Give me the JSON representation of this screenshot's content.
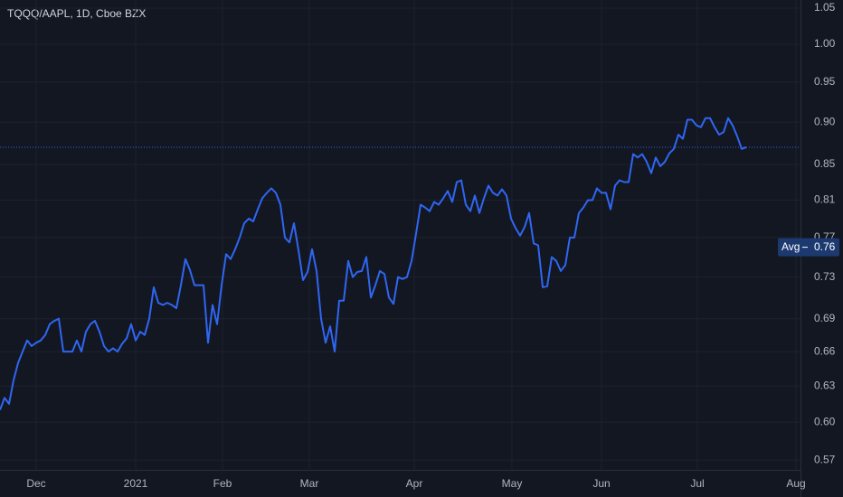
{
  "chart_data": {
    "type": "line",
    "title": "TQQQ/AAPL, 1D, Cboe BZX",
    "log_scale": true,
    "grid": true,
    "color": "#2f66f2",
    "values": [
      0.61,
      0.62,
      0.615,
      0.635,
      0.65,
      0.66,
      0.67,
      0.665,
      0.668,
      0.67,
      0.675,
      0.685,
      0.688,
      0.69,
      0.66,
      0.66,
      0.66,
      0.67,
      0.66,
      0.678,
      0.685,
      0.688,
      0.678,
      0.665,
      0.66,
      0.663,
      0.66,
      0.667,
      0.672,
      0.685,
      0.67,
      0.678,
      0.675,
      0.69,
      0.72,
      0.705,
      0.703,
      0.705,
      0.703,
      0.7,
      0.722,
      0.748,
      0.737,
      0.722,
      0.722,
      0.722,
      0.668,
      0.703,
      0.685,
      0.722,
      0.753,
      0.748,
      0.758,
      0.77,
      0.785,
      0.79,
      0.787,
      0.8,
      0.812,
      0.818,
      0.823,
      0.818,
      0.805,
      0.77,
      0.765,
      0.785,
      0.757,
      0.727,
      0.735,
      0.758,
      0.736,
      0.69,
      0.668,
      0.683,
      0.66,
      0.707,
      0.707,
      0.746,
      0.73,
      0.735,
      0.736,
      0.75,
      0.71,
      0.722,
      0.736,
      0.733,
      0.71,
      0.704,
      0.73,
      0.728,
      0.73,
      0.746,
      0.774,
      0.805,
      0.802,
      0.798,
      0.808,
      0.805,
      0.812,
      0.82,
      0.808,
      0.83,
      0.832,
      0.805,
      0.798,
      0.815,
      0.796,
      0.812,
      0.826,
      0.818,
      0.815,
      0.822,
      0.815,
      0.79,
      0.78,
      0.772,
      0.781,
      0.796,
      0.764,
      0.762,
      0.72,
      0.721,
      0.75,
      0.746,
      0.736,
      0.742,
      0.77,
      0.77,
      0.796,
      0.802,
      0.81,
      0.81,
      0.823,
      0.818,
      0.818,
      0.8,
      0.826,
      0.832,
      0.83,
      0.83,
      0.862,
      0.858,
      0.862,
      0.853,
      0.84,
      0.858,
      0.848,
      0.853,
      0.863,
      0.868,
      0.885,
      0.88,
      0.903,
      0.903,
      0.896,
      0.894,
      0.905,
      0.905,
      0.894,
      0.885,
      0.888,
      0.905,
      0.896,
      0.883,
      0.868,
      0.87
    ],
    "xlim": [
      0,
      177
    ],
    "xticks": [
      {
        "value": 8,
        "label": "Dec"
      },
      {
        "value": 30,
        "label": "2021"
      },
      {
        "value": 49.2,
        "label": "Feb"
      },
      {
        "value": 68.4,
        "label": "Mar"
      },
      {
        "value": 91.6,
        "label": "Apr"
      },
      {
        "value": 113.2,
        "label": "May"
      },
      {
        "value": 133,
        "label": "Jun"
      },
      {
        "value": 154.2,
        "label": "Jul"
      },
      {
        "value": 176,
        "label": "Aug"
      }
    ],
    "ylim": [
      0.5625,
      1.0616
    ],
    "yticks": [
      1.05,
      {
        "value": 1.0,
        "label": "1.00"
      },
      0.95,
      {
        "value": 0.9,
        "label": "0.90"
      },
      0.85,
      0.81,
      0.77,
      0.73,
      0.69,
      0.66,
      0.63,
      {
        "value": 0.6,
        "label": "0.60"
      },
      0.57
    ],
    "avg_label": "Avg",
    "avg_value": 0.76
  }
}
